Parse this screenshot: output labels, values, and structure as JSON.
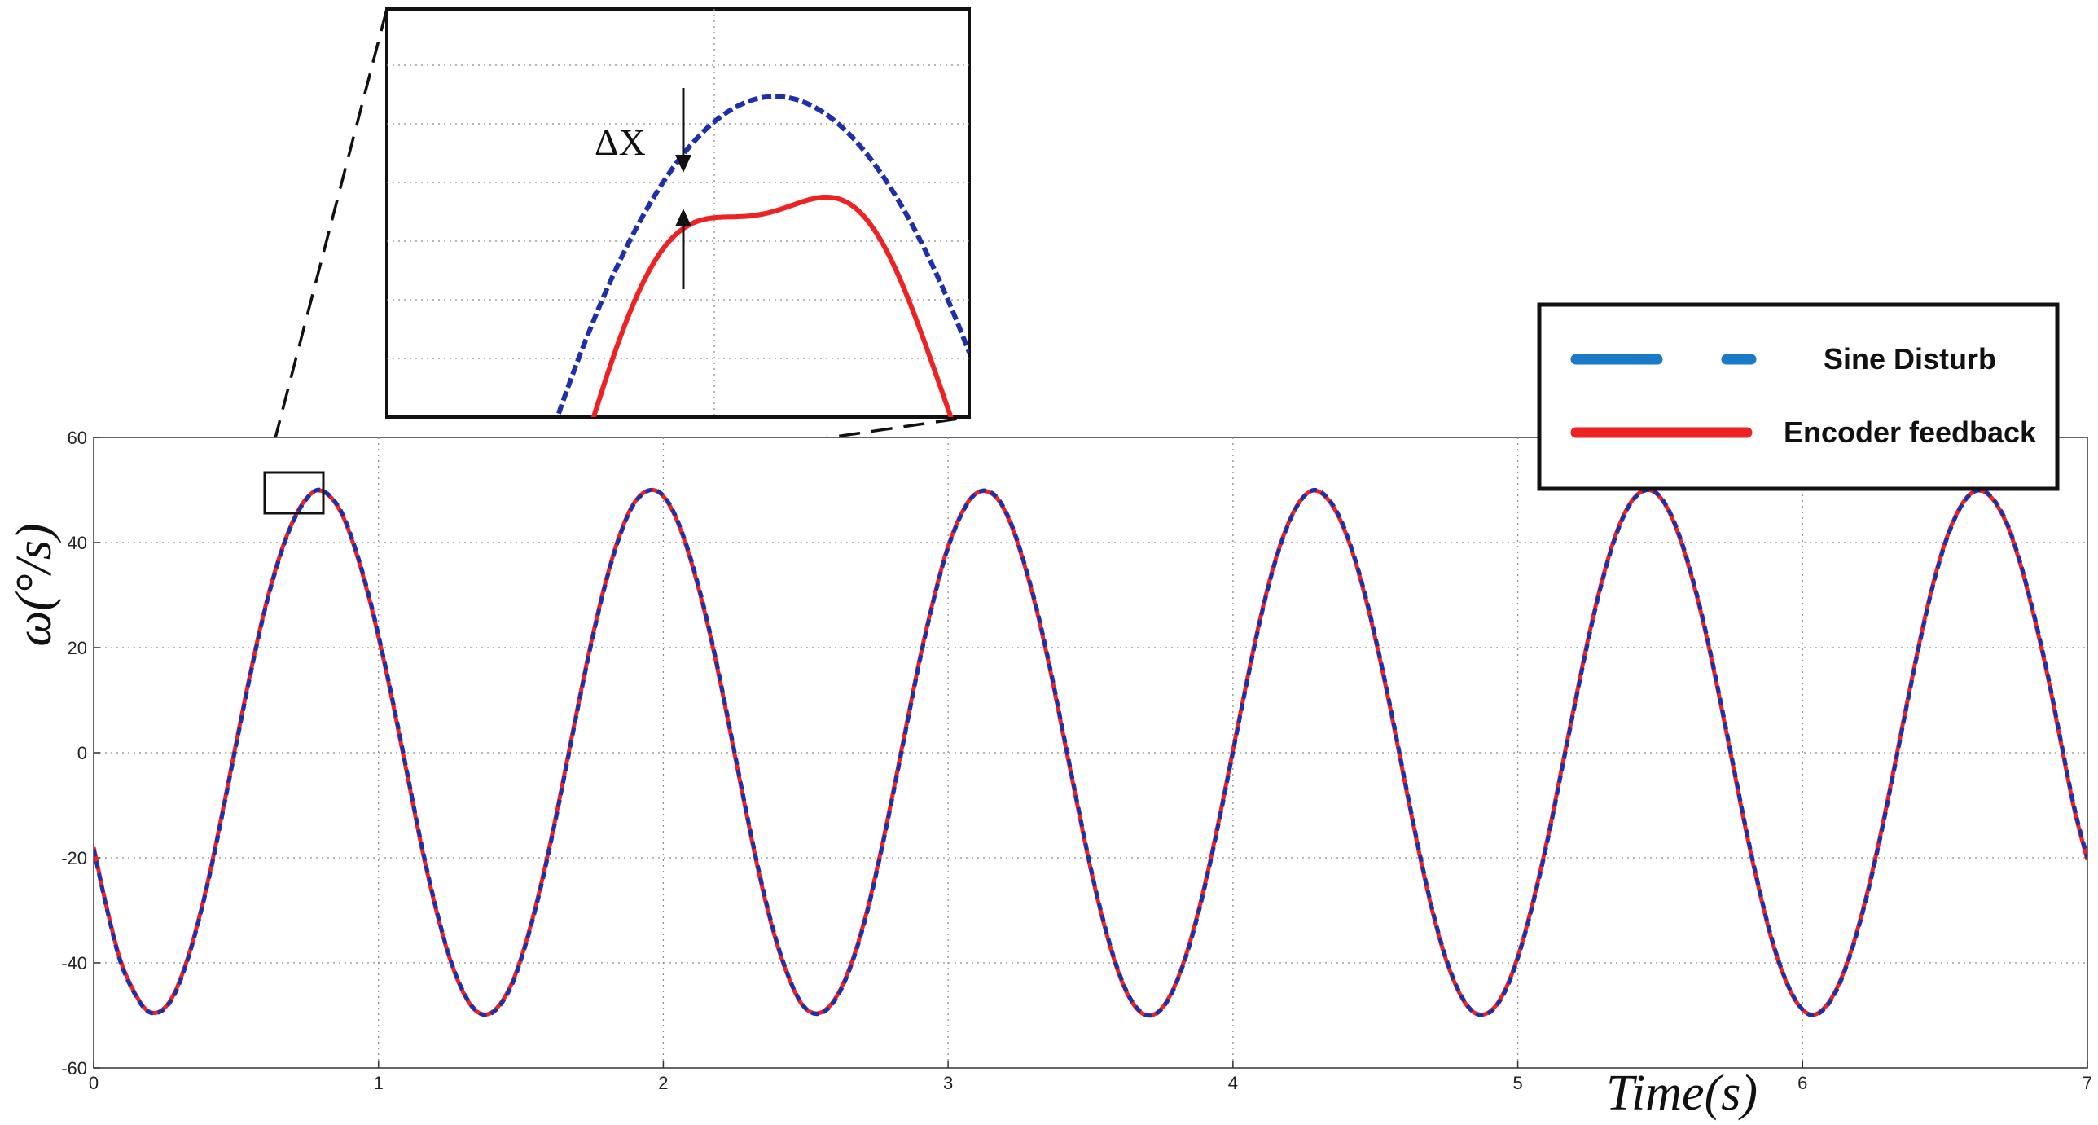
{
  "chart_data": {
    "type": "line",
    "xlabel": "Time(s)",
    "ylabel": "ω(°/s)",
    "xlim": [
      0,
      7
    ],
    "ylim": [
      -60,
      60
    ],
    "x_ticks": [
      "0",
      "1",
      "2",
      "3",
      "4",
      "5",
      "6",
      "7"
    ],
    "y_ticks": [
      "60",
      "40",
      "20",
      "0",
      "-20",
      "-40",
      "-60"
    ],
    "grid": true,
    "grid_style": "dotted",
    "legend_position": "top-right",
    "x_sample_step": 0.05,
    "series": [
      {
        "name": "Sine Disturb",
        "color": "#1f2fa8",
        "legend_color": "#1a7ac8",
        "style": "dashed",
        "x_start": 0,
        "x_end": 7,
        "values": [
          -18.4,
          -29.7,
          -39.5,
          -45.3,
          -49.0,
          -49.4,
          -46.8,
          -40.7,
          -32.1,
          -21.6,
          -9.4,
          3.2,
          15.4,
          26.6,
          35.7,
          42.8,
          47.5,
          50.0,
          48.9,
          45.3,
          38.5,
          29.8,
          19.3,
          7.5,
          -5.0,
          -17.5,
          -28.5,
          -37.8,
          -44.5,
          -48.7,
          -49.9,
          -48.0,
          -43.5,
          -36.0,
          -26.6,
          -15.4,
          -3.1,
          9.5,
          21.4,
          31.9,
          40.4,
          46.5,
          49.5,
          49.8,
          46.9,
          41.0,
          32.8,
          22.8,
          11.0,
          -1.6,
          -14.1,
          -25.6,
          -35.3,
          -42.7,
          -47.8,
          -49.7,
          -48.7,
          -45.0,
          -38.7,
          -30.1,
          -19.3,
          -7.3,
          5.3,
          17.7,
          28.6,
          37.9,
          44.5,
          48.7,
          49.9,
          48.2,
          43.3,
          35.7,
          26.4,
          15.2,
          2.8,
          -9.6,
          -21.7,
          -32.1,
          -40.6,
          -46.6,
          -49.6,
          -49.7,
          -46.7,
          -40.9,
          -32.7,
          -22.4,
          -10.6,
          1.9,
          14.3,
          25.9,
          35.6,
          43.0,
          47.9,
          50.0,
          48.7,
          44.8,
          38.2,
          29.5,
          18.9,
          7.0,
          -5.7,
          -18.0,
          -29.2,
          -38.3,
          -44.9,
          -48.9,
          -49.9,
          -48.0,
          -43.2,
          -35.6,
          -26.0,
          -14.9,
          -2.4,
          10.0,
          22.0,
          32.5,
          40.9,
          46.7,
          49.6,
          49.7,
          46.6,
          40.6,
          32.3,
          22.1,
          10.2,
          -2.3,
          -14.8,
          -26.1,
          -35.9,
          -43.2,
          -48.0,
          -50.0,
          -48.6,
          -44.6,
          -37.9,
          -29.2,
          -18.6,
          -6.6,
          6.0,
          18.3,
          29.5,
          38.6,
          45.1,
          49.0,
          49.9,
          47.7,
          42.9,
          35.2,
          25.6,
          14.6,
          2.0,
          -10.4,
          -20.0
        ]
      },
      {
        "name": "Encoder feedback",
        "color": "#ee2222",
        "legend_color": "#ee2222",
        "style": "solid",
        "x_start": 0,
        "x_end": 7,
        "values": [
          -18.0,
          -29.5,
          -39.2,
          -45.1,
          -48.9,
          -49.3,
          -46.5,
          -40.4,
          -31.8,
          -21.2,
          -9.0,
          3.6,
          15.8,
          26.9,
          36.0,
          43.0,
          47.7,
          49.9,
          48.8,
          45.0,
          38.2,
          29.4,
          18.9,
          7.1,
          -5.4,
          -17.9,
          -28.8,
          -38.0,
          -44.7,
          -48.8,
          -49.8,
          -47.8,
          -43.2,
          -35.7,
          -26.2,
          -15.0,
          -2.7,
          9.9,
          21.8,
          32.2,
          40.7,
          46.7,
          49.6,
          49.7,
          46.7,
          40.7,
          32.4,
          22.4,
          10.6,
          -2.0,
          -14.5,
          -26.0,
          -35.6,
          -42.9,
          -47.9,
          -49.6,
          -48.5,
          -44.7,
          -38.4,
          -29.7,
          -18.9,
          -6.9,
          5.7,
          18.1,
          28.9,
          38.2,
          44.7,
          48.8,
          49.8,
          48.0,
          43.0,
          35.4,
          26.0,
          14.8,
          2.4,
          -10.0,
          -22.0,
          -32.4,
          -40.9,
          -46.8,
          -49.7,
          -49.6,
          -46.5,
          -40.6,
          -32.3,
          -22.0,
          -10.2,
          2.3,
          14.7,
          26.2,
          35.9,
          43.2,
          48.0,
          49.9,
          48.5,
          44.5,
          37.9,
          29.1,
          18.5,
          6.6,
          -6.1,
          -18.4,
          -29.5,
          -38.6,
          -45.1,
          -49.0,
          -49.8,
          -47.8,
          -42.9,
          -35.3,
          -25.6,
          -14.5,
          -2.0,
          10.4,
          22.4,
          32.8,
          41.2,
          46.9,
          49.7,
          49.6,
          46.4,
          40.3,
          31.9,
          21.7,
          9.8,
          -2.7,
          -15.2,
          -26.4,
          -36.2,
          -43.4,
          -48.1,
          -49.9,
          -48.4,
          -44.3,
          -37.6,
          -28.8,
          -18.2,
          -6.2,
          6.4,
          18.7,
          29.8,
          38.9,
          45.3,
          49.1,
          49.8,
          47.5,
          42.6,
          34.9,
          25.2,
          14.2,
          1.6,
          -10.8,
          -20.4
        ]
      }
    ],
    "annotations": {
      "delta_label": "ΔX"
    }
  }
}
